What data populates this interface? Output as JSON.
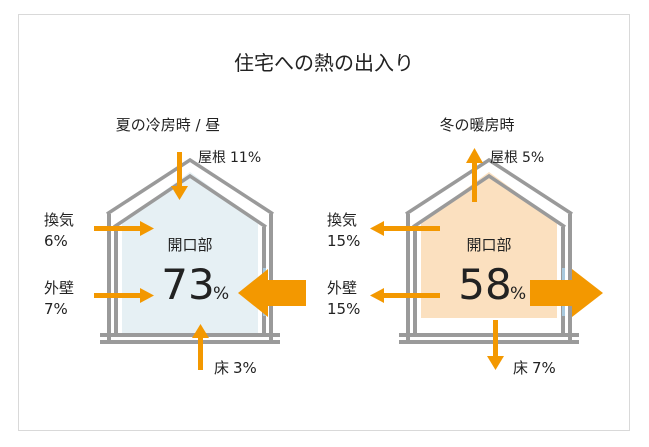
{
  "title": "住宅への熱の出入り",
  "summer": {
    "heading": "夏の冷房時 / 昼",
    "roof": {
      "label": "屋根",
      "value": "11%"
    },
    "ventilation": {
      "label": "換気",
      "value": "6%"
    },
    "wall": {
      "label": "外壁",
      "value": "7%"
    },
    "openings": {
      "label": "開口部",
      "value": "73",
      "unit": "%"
    },
    "floor": {
      "label": "床",
      "value": "3%"
    }
  },
  "winter": {
    "heading": "冬の暖房時",
    "roof": {
      "label": "屋根",
      "value": "5%"
    },
    "ventilation": {
      "label": "換気",
      "value": "15%"
    },
    "wall": {
      "label": "外壁",
      "value": "15%"
    },
    "openings": {
      "label": "開口部",
      "value": "58",
      "unit": "%"
    },
    "floor": {
      "label": "床",
      "value": "7%"
    }
  },
  "colors": {
    "arrow": "#f39800",
    "summer_fill": "#e6f0f4",
    "winter_fill": "#fbe0bf",
    "house_outline": "#9a9a9a",
    "window": "#a8c9de"
  }
}
